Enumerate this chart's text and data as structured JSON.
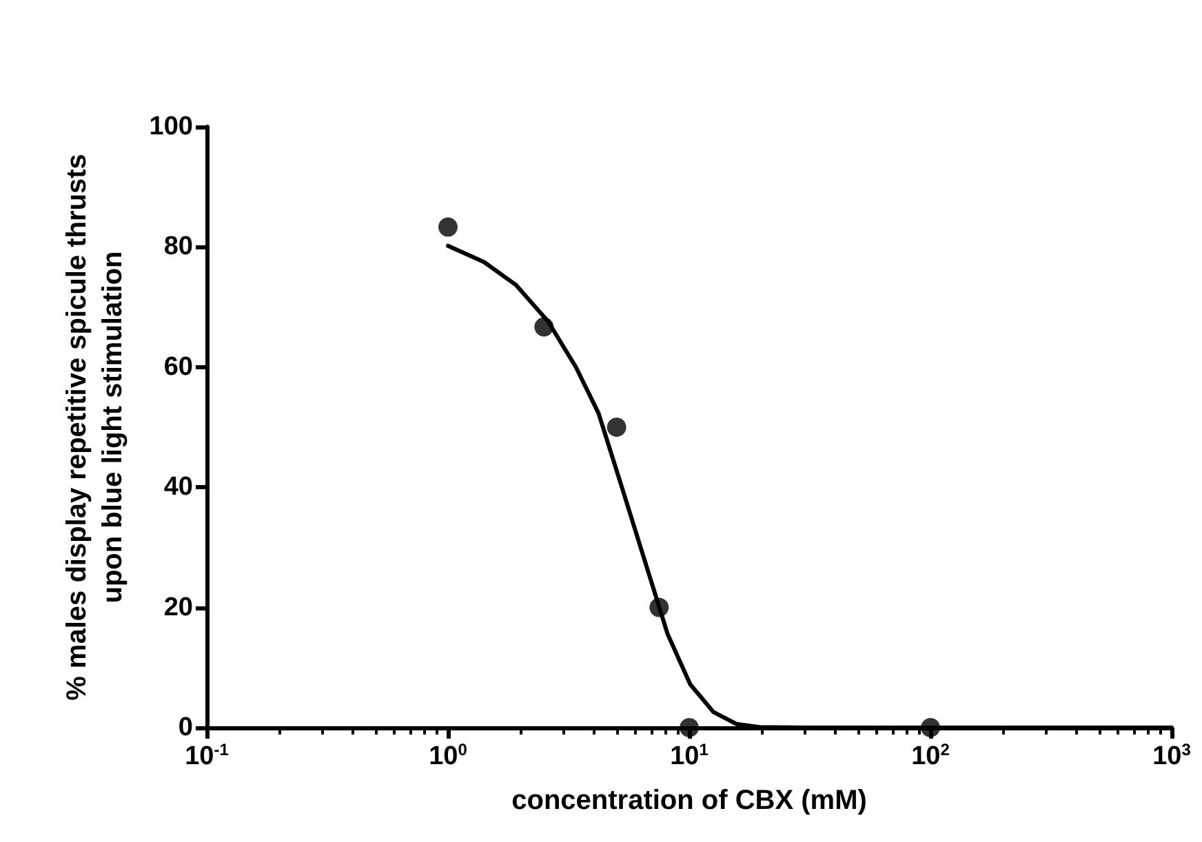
{
  "chart_data": {
    "type": "scatter",
    "xlabel": "concentration of CBX (mM)",
    "ylabel": "% males display repetitive spicule thrusts\nupon blue light stimulation",
    "log": "x",
    "grid": false,
    "marker": "circle",
    "xlim": [
      0.1,
      1000
    ],
    "ylim": [
      0,
      100
    ],
    "xticks": [
      {
        "value": 0.1,
        "label": "10$^{-1}$"
      },
      {
        "value": 1,
        "label": "10$^{0}$"
      },
      {
        "value": 10,
        "label": "10$^{1}$"
      },
      {
        "value": 100,
        "label": "10$^{2}$"
      },
      {
        "value": 1000,
        "label": "10$^{3}$"
      }
    ],
    "yticks": [
      0,
      20,
      40,
      60,
      80,
      100
    ],
    "series": [
      {
        "color": "#000000",
        "x": [
          1,
          2.5,
          5,
          7.5,
          10,
          100
        ],
        "values": [
          83.3,
          66.7,
          50,
          20,
          0,
          0
        ]
      },
      {
        "type": "line",
        "color": "#000000",
        "marker": "none",
        "line_style": "solid",
        "x": [
          1,
          1.41,
          1.91,
          2.6,
          3.39,
          4.21,
          5.25,
          6.54,
          8.13,
          10.1,
          12.6,
          15.7,
          19.5,
          30,
          100,
          1000
        ],
        "values": [
          80.2,
          77.5,
          73.7,
          67.6,
          60,
          52.3,
          40.1,
          27.8,
          15.6,
          7.2,
          2.6,
          0.6,
          0.1,
          0,
          0,
          0
        ]
      }
    ]
  }
}
